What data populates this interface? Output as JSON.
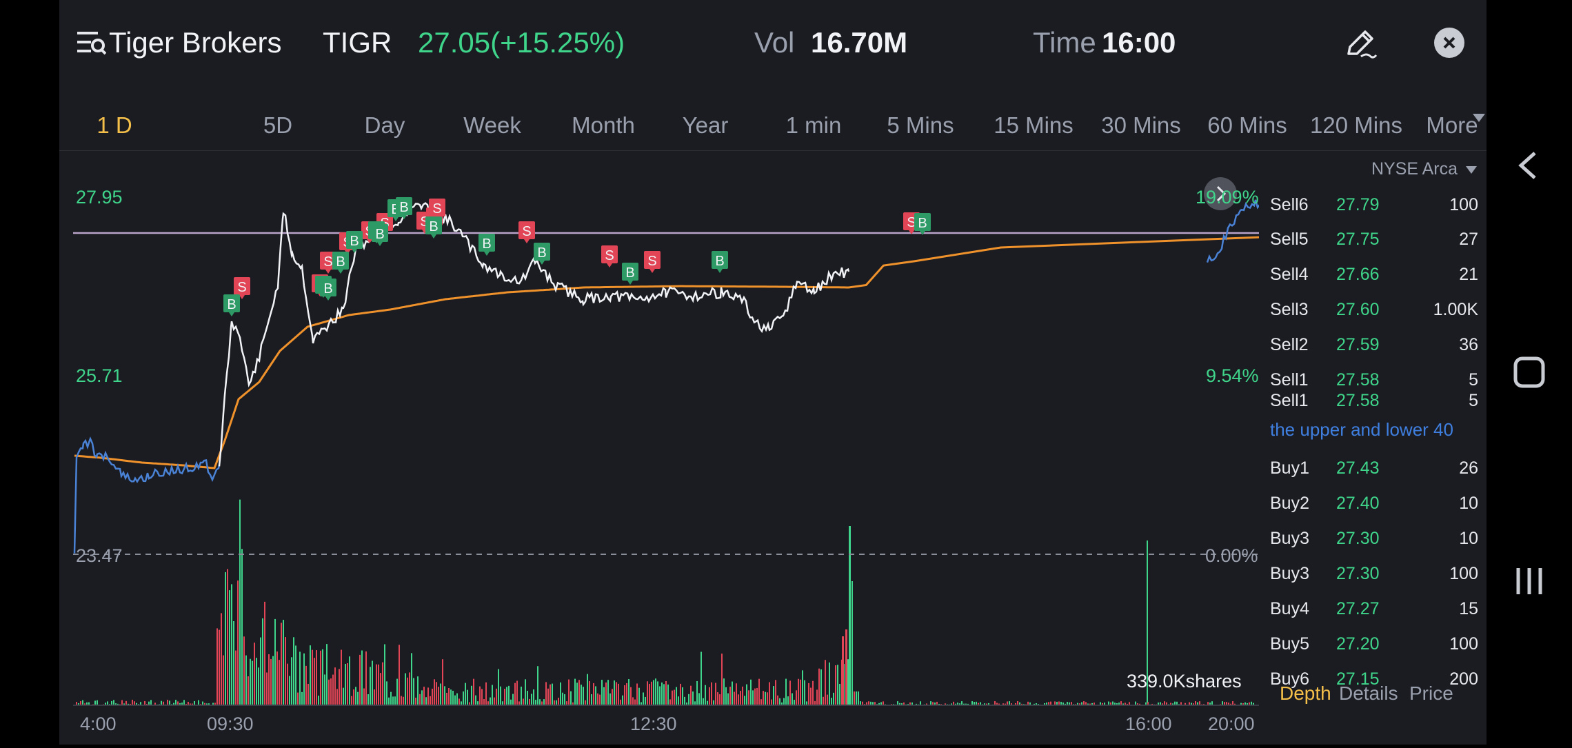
{
  "header": {
    "title": "Tiger Brokers",
    "symbol": "TIGR",
    "price_change": "27.05(+15.25%)",
    "vol_label": "Vol",
    "vol_value": "16.70M",
    "time_label": "Time",
    "time_value": "16:00"
  },
  "tabs": [
    {
      "label": "1 D",
      "active": true
    },
    {
      "label": "5D"
    },
    {
      "label": "Day"
    },
    {
      "label": "Week"
    },
    {
      "label": "Month"
    },
    {
      "label": "Year"
    },
    {
      "label": "1 min"
    },
    {
      "label": "5 Mins"
    },
    {
      "label": "15 Mins"
    },
    {
      "label": "30 Mins"
    },
    {
      "label": "60 Mins"
    },
    {
      "label": "120 Mins"
    },
    {
      "label": "More"
    }
  ],
  "chart": {
    "y_labels": {
      "top": "27.95",
      "mid": "25.71",
      "bottom": "23.47"
    },
    "pct_labels": {
      "top": "19.09%",
      "mid": "9.54%",
      "bottom": "0.00%"
    },
    "x_labels": [
      "4:00",
      "09:30",
      "12:30",
      "16:00",
      "20:00"
    ],
    "volume_label": "339.0Kshares",
    "trade_markers_sell": "S",
    "trade_markers_buy": "B",
    "colors": {
      "price_line": "#f2f3f6",
      "extended_line": "#4a82d6",
      "avg_line": "#f0922b",
      "up": "#3fd58a",
      "down": "#e24556",
      "ref_line": "#b9a3c8"
    }
  },
  "orderbook": {
    "exchange": "NYSE Arca",
    "sells": [
      {
        "label": "Sell6",
        "price": "27.79",
        "qty": "100"
      },
      {
        "label": "Sell5",
        "price": "27.75",
        "qty": "27"
      },
      {
        "label": "Sell4",
        "price": "27.66",
        "qty": "21"
      },
      {
        "label": "Sell3",
        "price": "27.60",
        "qty": "1.00K"
      },
      {
        "label": "Sell2",
        "price": "27.59",
        "qty": "36"
      },
      {
        "label": "Sell1",
        "price": "27.58",
        "qty": "5"
      },
      {
        "label": "Sell1",
        "price": "27.58",
        "qty": "5"
      }
    ],
    "banner": "the upper and lower 40",
    "buys": [
      {
        "label": "Buy1",
        "price": "27.43",
        "qty": "26"
      },
      {
        "label": "Buy2",
        "price": "27.40",
        "qty": "10"
      },
      {
        "label": "Buy3",
        "price": "27.30",
        "qty": "10"
      },
      {
        "label": "Buy3",
        "price": "27.30",
        "qty": "100"
      },
      {
        "label": "Buy4",
        "price": "27.27",
        "qty": "15"
      },
      {
        "label": "Buy5",
        "price": "27.20",
        "qty": "100"
      },
      {
        "label": "Buy6",
        "price": "27.15",
        "qty": "200"
      }
    ],
    "tabs": [
      "Depth",
      "Details",
      "Price"
    ]
  }
}
